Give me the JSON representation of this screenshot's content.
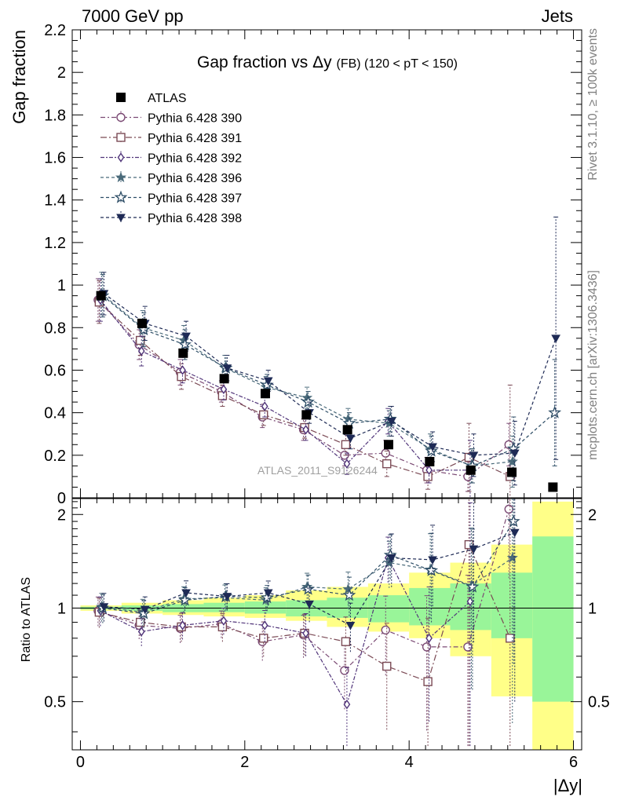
{
  "header": {
    "left": "7000 GeV pp",
    "right": "Jets"
  },
  "side_texts": {
    "rivet": "Rivet 3.1.10, ≥ 100k events",
    "mcplots": "mcplots.cern.ch [arXiv:1306.3436]"
  },
  "watermark": "ATLAS_2011_S9126244",
  "chart_data": {
    "type": "scatter",
    "title": "Gap fraction vs Δy (FB) (120 < pT < 150)",
    "title_parts": {
      "main": "Gap fraction vs",
      "symbol": "Δy",
      "sub": "(FB) (120 < pT < 150)"
    },
    "xlabel": "|Δy|",
    "xlim": [
      -0.1,
      6.1
    ],
    "xticks": [
      0,
      2,
      4,
      6
    ],
    "x": [
      0.25,
      0.75,
      1.25,
      1.75,
      2.25,
      2.75,
      3.25,
      3.75,
      4.25,
      4.75,
      5.25,
      5.75
    ],
    "top": {
      "ylabel": "Gap fraction",
      "ylim": [
        0,
        2.2
      ],
      "yticks": [
        0,
        0.2,
        0.4,
        0.6,
        0.8,
        1,
        1.2,
        1.4,
        1.6,
        1.8,
        2,
        2.2
      ]
    },
    "ratio": {
      "ylabel": "Ratio to ATLAS",
      "ylim": [
        0.35,
        2.25
      ],
      "yticks": [
        0.5,
        1,
        2
      ]
    },
    "data": {
      "name": "ATLAS",
      "values": [
        0.95,
        0.82,
        0.68,
        0.56,
        0.49,
        0.39,
        0.32,
        0.25,
        0.17,
        0.13,
        0.12,
        0.05
      ],
      "band_edges": [
        0,
        0.5,
        1,
        1.5,
        2,
        2.5,
        3,
        3.5,
        4,
        4.5,
        5,
        5.5,
        6
      ],
      "band_inner": [
        [
          0.99,
          1.01
        ],
        [
          0.98,
          1.02
        ],
        [
          0.97,
          1.03
        ],
        [
          0.97,
          1.04
        ],
        [
          0.96,
          1.05
        ],
        [
          0.94,
          1.06
        ],
        [
          0.93,
          1.08
        ],
        [
          0.9,
          1.1
        ],
        [
          0.88,
          1.16
        ],
        [
          0.85,
          1.2
        ],
        [
          0.8,
          1.3
        ],
        [
          0.5,
          1.7
        ]
      ],
      "band_outer": [
        [
          0.98,
          1.02
        ],
        [
          0.96,
          1.04
        ],
        [
          0.95,
          1.06
        ],
        [
          0.94,
          1.08
        ],
        [
          0.93,
          1.1
        ],
        [
          0.91,
          1.14
        ],
        [
          0.87,
          1.17
        ],
        [
          0.84,
          1.2
        ],
        [
          0.8,
          1.3
        ],
        [
          0.7,
          1.4
        ],
        [
          0.52,
          1.6
        ],
        [
          0.3,
          2.2
        ]
      ]
    },
    "series": [
      {
        "name": "Pythia 6.428 390",
        "color": "#7b4a74",
        "marker": "circle-open",
        "dash": "6,3,2,3",
        "values": [
          0.93,
          0.72,
          0.59,
          0.5,
          0.38,
          0.32,
          0.2,
          0.21,
          0.13,
          0.1,
          0.25,
          null
        ],
        "errors": [
          0.1,
          0.07,
          0.06,
          0.05,
          0.05,
          0.05,
          0.05,
          0.06,
          0.06,
          0.07,
          0.1,
          null
        ]
      },
      {
        "name": "Pythia 6.428 391",
        "color": "#7b4a55",
        "marker": "square-open",
        "dash": "8,3,2,3",
        "values": [
          0.92,
          0.74,
          0.57,
          0.48,
          0.39,
          0.33,
          0.25,
          0.16,
          0.1,
          0.19,
          0.1,
          null
        ],
        "errors": [
          0.1,
          0.07,
          0.06,
          0.05,
          0.05,
          0.05,
          0.05,
          0.06,
          0.06,
          0.16,
          0.43,
          null
        ]
      },
      {
        "name": "Pythia 6.428 392",
        "color": "#51357a",
        "marker": "diamond-open",
        "dash": "5,2,2,2",
        "values": [
          0.93,
          0.69,
          0.6,
          0.51,
          0.43,
          0.32,
          0.16,
          0.36,
          0.13,
          0.13,
          null,
          null
        ],
        "errors": [
          0.1,
          0.07,
          0.06,
          0.05,
          0.05,
          0.05,
          0.05,
          0.06,
          0.06,
          0.14,
          null,
          null
        ]
      },
      {
        "name": "Pythia 6.428 396",
        "color": "#4a6a7a",
        "marker": "star-filled",
        "dash": "4,3",
        "values": [
          0.96,
          0.8,
          0.74,
          0.61,
          0.52,
          0.47,
          0.37,
          0.35,
          0.23,
          0.15,
          0.17,
          null
        ],
        "errors": [
          0.1,
          0.08,
          0.07,
          0.06,
          0.05,
          0.05,
          0.05,
          0.06,
          0.07,
          0.08,
          0.12,
          null
        ]
      },
      {
        "name": "Pythia 6.428 397",
        "color": "#2d4d66",
        "marker": "star-open",
        "dash": "4,3",
        "values": [
          0.95,
          0.79,
          0.72,
          0.61,
          0.53,
          0.45,
          0.35,
          0.37,
          0.22,
          0.15,
          0.23,
          0.4
        ],
        "errors": [
          0.1,
          0.08,
          0.07,
          0.06,
          0.05,
          0.05,
          0.05,
          0.06,
          0.07,
          0.08,
          0.15,
          0.25
        ]
      },
      {
        "name": "Pythia 6.428 398",
        "color": "#1e2a55",
        "marker": "triangle-down-filled",
        "dash": "4,3",
        "values": [
          0.96,
          0.82,
          0.76,
          0.61,
          0.55,
          0.4,
          0.28,
          0.36,
          0.24,
          0.2,
          0.21,
          0.75
        ],
        "errors": [
          0.1,
          0.08,
          0.07,
          0.06,
          0.05,
          0.05,
          0.05,
          0.07,
          0.07,
          0.1,
          0.15,
          0.57
        ]
      }
    ],
    "ratio_values": [
      [
        0.98,
        0.88,
        0.86,
        0.89,
        0.78,
        0.82,
        0.63,
        0.85,
        0.75,
        0.75,
        2.08,
        null
      ],
      [
        0.97,
        0.9,
        0.87,
        0.87,
        0.8,
        0.83,
        0.78,
        0.65,
        0.58,
        1.6,
        0.8,
        null
      ],
      [
        0.98,
        0.84,
        0.88,
        0.91,
        0.88,
        0.83,
        0.49,
        1.45,
        0.8,
        1.05,
        null,
        null
      ],
      [
        1.01,
        0.97,
        1.07,
        1.08,
        1.06,
        1.17,
        1.15,
        1.4,
        1.33,
        1.18,
        1.45,
        null
      ],
      [
        1.0,
        0.96,
        1.06,
        1.09,
        1.08,
        1.15,
        1.1,
        1.48,
        1.32,
        1.17,
        1.9,
        null
      ],
      [
        1.01,
        0.99,
        1.12,
        1.09,
        1.12,
        1.03,
        0.88,
        1.45,
        1.43,
        1.55,
        1.75,
        null
      ]
    ]
  }
}
